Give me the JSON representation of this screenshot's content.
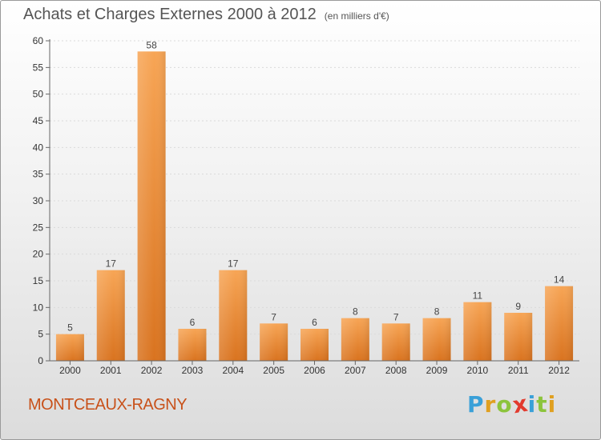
{
  "chart_data": {
    "type": "bar",
    "title": "Achats et Charges Externes 2000 à 2012",
    "subtitle": "(en milliers d'€)",
    "categories": [
      "2000",
      "2001",
      "2002",
      "2003",
      "2004",
      "2005",
      "2006",
      "2007",
      "2008",
      "2009",
      "2010",
      "2011",
      "2012"
    ],
    "values": [
      5,
      17,
      58,
      6,
      17,
      7,
      6,
      8,
      7,
      8,
      11,
      9,
      14
    ],
    "ylim": [
      0,
      60
    ],
    "yticks": [
      0,
      5,
      10,
      15,
      20,
      25,
      30,
      35,
      40,
      45,
      50,
      55,
      60
    ],
    "xlabel": "",
    "ylabel": "",
    "bar_color_light": "#f7a555",
    "bar_color_dark": "#d9731f"
  },
  "footer": {
    "commune": "MONTCEAUX-RAGNY",
    "logo_letters": [
      {
        "char": "P",
        "color": "#3aa0d8"
      },
      {
        "char": "r",
        "color": "#e0a020"
      },
      {
        "char": "o",
        "color": "#8cc43c"
      },
      {
        "char": "x",
        "color": "#e23a2e"
      },
      {
        "char": "i",
        "color": "#3aa0d8"
      },
      {
        "char": "t",
        "color": "#8cc43c"
      },
      {
        "char": "i",
        "color": "#e0a020"
      }
    ]
  }
}
